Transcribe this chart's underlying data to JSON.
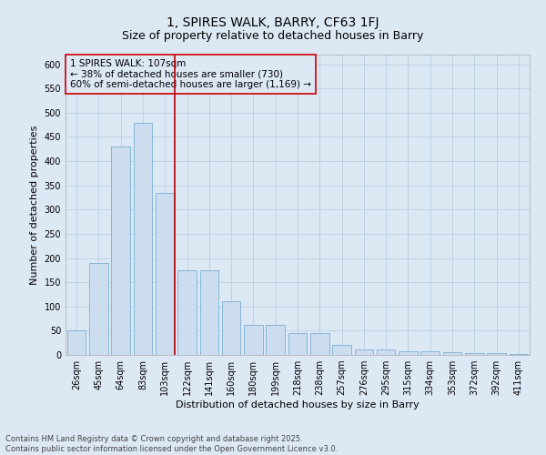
{
  "title1": "1, SPIRES WALK, BARRY, CF63 1FJ",
  "title2": "Size of property relative to detached houses in Barry",
  "xlabel": "Distribution of detached houses by size in Barry",
  "ylabel": "Number of detached properties",
  "categories": [
    "26sqm",
    "45sqm",
    "64sqm",
    "83sqm",
    "103sqm",
    "122sqm",
    "141sqm",
    "160sqm",
    "180sqm",
    "199sqm",
    "218sqm",
    "238sqm",
    "257sqm",
    "276sqm",
    "295sqm",
    "315sqm",
    "334sqm",
    "353sqm",
    "372sqm",
    "392sqm",
    "411sqm"
  ],
  "values": [
    50,
    190,
    430,
    480,
    335,
    175,
    175,
    110,
    62,
    62,
    45,
    45,
    20,
    11,
    11,
    7,
    7,
    5,
    3,
    3,
    2
  ],
  "bar_color": "#ccddf0",
  "bar_edge_color": "#7aafd4",
  "grid_color": "#b8cfe0",
  "bg_color": "#dde8f5",
  "vline_x_index": 4,
  "vline_color": "#bb0000",
  "annotation_text": "1 SPIRES WALK: 107sqm\n← 38% of detached houses are smaller (730)\n60% of semi-detached houses are larger (1,169) →",
  "annotation_box_color": "#cc0000",
  "ylim": [
    0,
    620
  ],
  "yticks": [
    0,
    50,
    100,
    150,
    200,
    250,
    300,
    350,
    400,
    450,
    500,
    550,
    600
  ],
  "footer": "Contains HM Land Registry data © Crown copyright and database right 2025.\nContains public sector information licensed under the Open Government Licence v3.0.",
  "title_fontsize": 10,
  "subtitle_fontsize": 9,
  "label_fontsize": 8,
  "tick_fontsize": 7,
  "annotation_fontsize": 7.5,
  "footer_fontsize": 6
}
